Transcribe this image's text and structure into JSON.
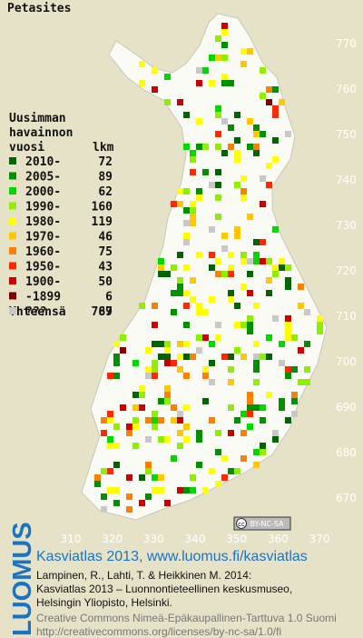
{
  "title": "Petasites",
  "legend": {
    "header": [
      "Uusimman",
      "havainnon",
      "vuosi"
    ],
    "count_header": "lkm",
    "items": [
      {
        "label": "2010-",
        "count": 72,
        "color": "#006400"
      },
      {
        "label": "2005-",
        "count": 89,
        "color": "#009000"
      },
      {
        "label": "2000-",
        "count": 62,
        "color": "#00d800"
      },
      {
        "label": "1990-",
        "count": 160,
        "color": "#90ee00"
      },
      {
        "label": "1980-",
        "count": 119,
        "color": "#ffff00"
      },
      {
        "label": "1970-",
        "count": 46,
        "color": "#ffc800"
      },
      {
        "label": "1960-",
        "count": 75,
        "color": "#ff8000"
      },
      {
        "label": "1950-",
        "count": 43,
        "color": "#ff2800"
      },
      {
        "label": "1900-",
        "count": 50,
        "color": "#cc0000"
      },
      {
        "label": "-1899",
        "count": 6,
        "color": "#800000"
      },
      {
        "label": "???",
        "count": 67,
        "color": "#c8c8c8"
      }
    ],
    "total_label": "Yhteensä",
    "total": 789
  },
  "axes": {
    "yticks": [
      670,
      680,
      690,
      700,
      710,
      720,
      730,
      740,
      750,
      760,
      770
    ],
    "ylim": [
      670,
      770
    ],
    "xticks": [
      310,
      320,
      330,
      340,
      350,
      360,
      370
    ],
    "xlim": [
      310,
      370
    ]
  },
  "cc_badge": {
    "icon": "cc",
    "text": "BY-NC-SA"
  },
  "footer": {
    "brand": "LUOMUS",
    "link": "Kasviatlas 2013, www.luomus.fi/kasviatlas",
    "citation": [
      "Lampinen, R., Lahti, T. & Heikkinen M. 2014:",
      "Kasviatlas 2013 – Luonnontieteellinen keskusmuseo,",
      "Helsingin Yliopisto, Helsinki."
    ],
    "license": [
      "Creative Commons Nimeä-Epäkaupallinen-Tarttuva 1.0 Suomi",
      "http://creativecommons.org/licenses/by-nc-sa/1.0/fi"
    ]
  }
}
